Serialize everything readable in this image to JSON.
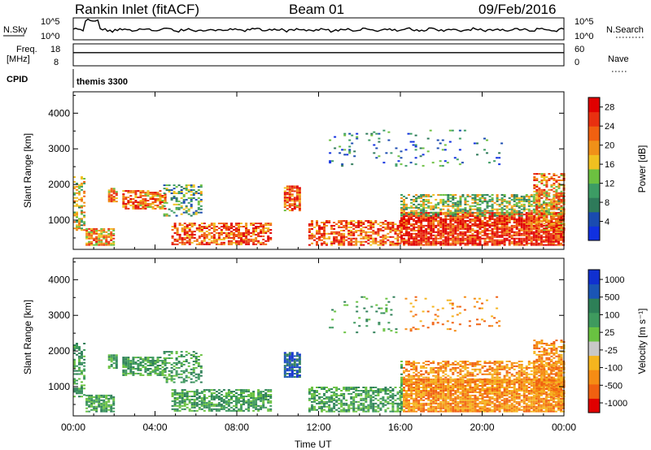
{
  "header": {
    "station": "Rankin Inlet (fitACF)",
    "beam": "Beam 01",
    "date": "09/Feb/2016"
  },
  "side_labels": {
    "nsky": "N.Sky",
    "nsearch": "N.Search",
    "freq_line1": "Freq.",
    "freq_line2": "[MHz]",
    "nave": "Nave",
    "cpid": "CPID",
    "cpid_value": "themis 3300"
  },
  "strip_ticks": {
    "nsky_top": "10^5",
    "nsky_bottom": "10^0",
    "nsearch_top": "10^5",
    "nsearch_bottom": "10^0",
    "freq_top": "18",
    "freq_bottom": "8",
    "nave_top": "60",
    "nave_bottom": "0"
  },
  "colors": {
    "power_scale": [
      "#1030e0",
      "#1a4bb0",
      "#2e7a5a",
      "#3c9c64",
      "#6cc040",
      "#f0c020",
      "#f09018",
      "#f06010",
      "#e83010",
      "#e00000"
    ],
    "velocity_scale": [
      "#1030d0",
      "#1a55b5",
      "#2d7f57",
      "#3e9a5e",
      "#69c241",
      "#c8c8c8",
      "#f5b51e",
      "#f58c14",
      "#f06010",
      "#e00000"
    ]
  },
  "chart_data": [
    {
      "type": "heatmap",
      "name": "power",
      "ylabel": "Slant Range [km]",
      "xlabel": "",
      "x_ticks": [
        "00:00",
        "04:00",
        "08:00",
        "12:00",
        "16:00",
        "20:00",
        "00:00"
      ],
      "y_ticks": [
        "1000",
        "2000",
        "3000",
        "4000"
      ],
      "ylim": [
        180,
        4600
      ],
      "xlim_hours": [
        0,
        24
      ],
      "colorbar_title": "Power [dB]",
      "colorbar_ticks": [
        "4",
        "8",
        "12",
        "16",
        "20",
        "24",
        "28"
      ],
      "colorbar_range": [
        0,
        30
      ]
    },
    {
      "type": "heatmap",
      "name": "velocity",
      "ylabel": "Slant Range [km]",
      "xlabel": "Time UT",
      "x_ticks": [
        "00:00",
        "04:00",
        "08:00",
        "12:00",
        "16:00",
        "20:00",
        "00:00"
      ],
      "y_ticks": [
        "1000",
        "2000",
        "3000",
        "4000"
      ],
      "ylim": [
        180,
        4600
      ],
      "xlim_hours": [
        0,
        24
      ],
      "colorbar_title": "Velocity [m s⁻¹]",
      "colorbar_ticks": [
        "1000",
        "500",
        "100",
        "25",
        "-25",
        "-100",
        "-500",
        "-1000"
      ],
      "colorbar_range": [
        -1000,
        1000
      ]
    }
  ]
}
